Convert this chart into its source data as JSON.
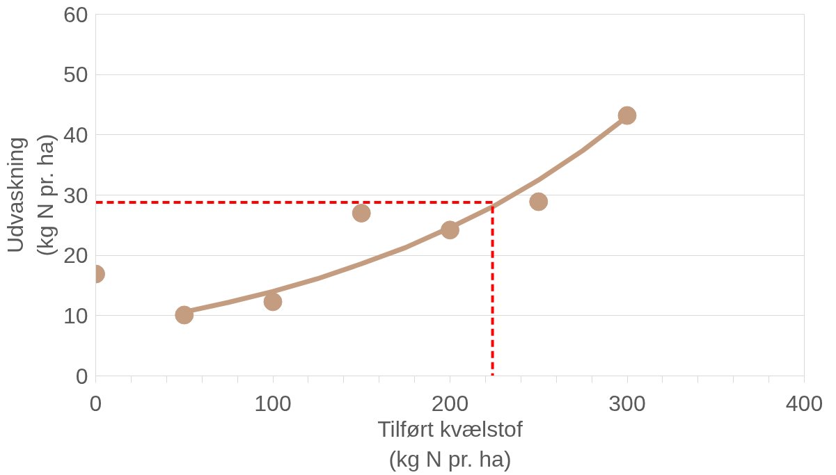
{
  "chart_data": {
    "type": "scatter",
    "xlabel": "Tilført kvælstof\n(kg N pr. ha)",
    "ylabel": "Udvaskning\n(kg N pr. ha)",
    "xlim": [
      0,
      400
    ],
    "ylim": [
      0,
      60
    ],
    "xticks": [
      0,
      {
        "value": 20,
        "label": null
      },
      {
        "value": 40,
        "label": null
      },
      {
        "value": 60,
        "label": null
      },
      {
        "value": 80,
        "label": null
      },
      100,
      {
        "value": 120,
        "label": null
      },
      {
        "value": 140,
        "label": null
      },
      {
        "value": 160,
        "label": null
      },
      {
        "value": 180,
        "label": null
      },
      200,
      {
        "value": 220,
        "label": null
      },
      {
        "value": 240,
        "label": null
      },
      {
        "value": 260,
        "label": null
      },
      {
        "value": 280,
        "label": null
      },
      300,
      {
        "value": 320,
        "label": null
      },
      {
        "value": 340,
        "label": null
      },
      {
        "value": 360,
        "label": null
      },
      {
        "value": 380,
        "label": null
      },
      400
    ],
    "yticks": [
      0,
      10,
      20,
      30,
      40,
      50,
      60
    ],
    "grid": "y",
    "marker": "circle",
    "series": [
      {
        "color": "#c49c80",
        "x": [
          0,
          50,
          100,
          150,
          200,
          250,
          300
        ],
        "values": [
          16.9,
          10.1,
          12.3,
          27.0,
          24.2,
          28.9,
          43.2
        ]
      },
      {
        "type": "line",
        "color": "#c49c80",
        "marker": "none",
        "x": [
          50,
          75,
          100,
          125,
          150,
          175,
          200,
          225,
          250,
          275,
          300
        ],
        "values": [
          10.6,
          12.2,
          14.0,
          16.1,
          18.6,
          21.3,
          24.6,
          28.2,
          32.5,
          37.4,
          43.0
        ]
      },
      {
        "type": "line",
        "color": "#ff0000",
        "marker": "none",
        "line_style": "dashed",
        "x": [
          0,
          224,
          224
        ],
        "values": [
          28.8,
          28.8,
          0
        ]
      }
    ]
  }
}
